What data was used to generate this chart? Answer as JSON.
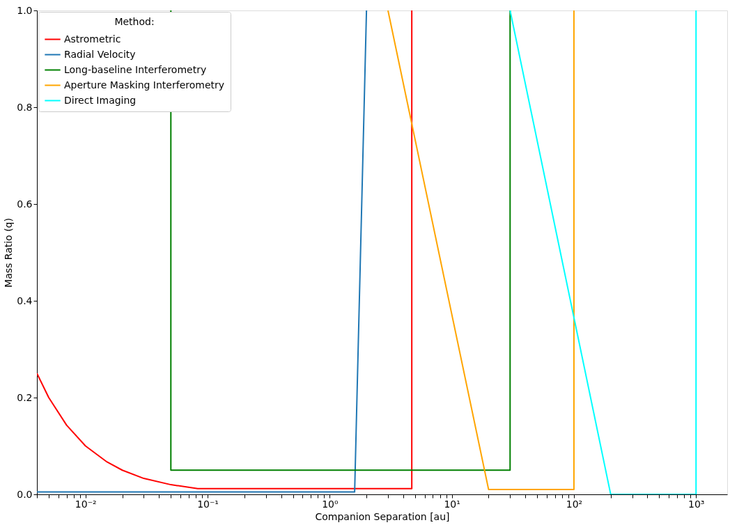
{
  "chart_data": {
    "type": "line",
    "xlabel": "Companion Separation [au]",
    "ylabel": "Mass Ratio (q)",
    "legend_title": "Method:",
    "legend": "top left",
    "grid": false,
    "log": "x",
    "marker": "none",
    "line_style": "solid",
    "xlim": [
      0.004,
      1800
    ],
    "ylim": [
      0,
      1
    ],
    "xticks": [
      {
        "value": 0.004,
        "label": null
      },
      {
        "value": 0.005,
        "label": null
      },
      {
        "value": 0.006,
        "label": null
      },
      {
        "value": 0.007,
        "label": null
      },
      {
        "value": 0.008,
        "label": null
      },
      {
        "value": 0.009,
        "label": null
      },
      {
        "value": 0.01,
        "label": "10⁻²"
      },
      {
        "value": 0.02,
        "label": null
      },
      {
        "value": 0.03,
        "label": null
      },
      {
        "value": 0.04,
        "label": null
      },
      {
        "value": 0.05,
        "label": null
      },
      {
        "value": 0.06,
        "label": null
      },
      {
        "value": 0.07,
        "label": null
      },
      {
        "value": 0.08,
        "label": null
      },
      {
        "value": 0.09,
        "label": null
      },
      {
        "value": 0.1,
        "label": "10⁻¹"
      },
      {
        "value": 0.2,
        "label": null
      },
      {
        "value": 0.3,
        "label": null
      },
      {
        "value": 0.4,
        "label": null
      },
      {
        "value": 0.5,
        "label": null
      },
      {
        "value": 0.6,
        "label": null
      },
      {
        "value": 0.7,
        "label": null
      },
      {
        "value": 0.8,
        "label": null
      },
      {
        "value": 0.9,
        "label": null
      },
      {
        "value": 1,
        "label": "10⁰"
      },
      {
        "value": 2,
        "label": null
      },
      {
        "value": 3,
        "label": null
      },
      {
        "value": 4,
        "label": null
      },
      {
        "value": 5,
        "label": null
      },
      {
        "value": 6,
        "label": null
      },
      {
        "value": 7,
        "label": null
      },
      {
        "value": 8,
        "label": null
      },
      {
        "value": 9,
        "label": null
      },
      {
        "value": 10,
        "label": "10¹"
      },
      {
        "value": 20,
        "label": null
      },
      {
        "value": 30,
        "label": null
      },
      {
        "value": 40,
        "label": null
      },
      {
        "value": 50,
        "label": null
      },
      {
        "value": 60,
        "label": null
      },
      {
        "value": 70,
        "label": null
      },
      {
        "value": 80,
        "label": null
      },
      {
        "value": 90,
        "label": null
      },
      {
        "value": 100,
        "label": "10²"
      },
      {
        "value": 200,
        "label": null
      },
      {
        "value": 300,
        "label": null
      },
      {
        "value": 400,
        "label": null
      },
      {
        "value": 500,
        "label": null
      },
      {
        "value": 600,
        "label": null
      },
      {
        "value": 700,
        "label": null
      },
      {
        "value": 800,
        "label": null
      },
      {
        "value": 900,
        "label": null
      },
      {
        "value": 1000,
        "label": "10³"
      }
    ],
    "yticks": [
      {
        "value": 0,
        "label": "0.0"
      },
      {
        "value": 0.2,
        "label": "0.2"
      },
      {
        "value": 0.4,
        "label": "0.4"
      },
      {
        "value": 0.6,
        "label": "0.6"
      },
      {
        "value": 0.8,
        "label": "0.8"
      },
      {
        "value": 1,
        "label": "1.0"
      }
    ],
    "series": [
      {
        "name": "Astrometric",
        "color": "#ff0000",
        "x": [
          0.004,
          0.005,
          0.007,
          0.01,
          0.015,
          0.02,
          0.03,
          0.05,
          0.083,
          4.7,
          4.7
        ],
        "values": [
          0.25,
          0.2,
          0.143,
          0.1,
          0.067,
          0.05,
          0.033,
          0.02,
          0.012,
          0.012,
          1.0
        ]
      },
      {
        "name": "Radial Velocity",
        "color": "#1f77b4",
        "x": [
          0.004,
          1.6,
          2.0
        ],
        "values": [
          0.005,
          0.005,
          1.0
        ]
      },
      {
        "name": "Long-baseline Interferometry",
        "color": "#008000",
        "x": [
          0.05,
          0.05,
          30,
          30
        ],
        "values": [
          1.0,
          0.05,
          0.05,
          1.0
        ]
      },
      {
        "name": "Aperture Masking Interferometry",
        "color": "#ffa500",
        "x": [
          3.0,
          20,
          100,
          100
        ],
        "values": [
          1.0,
          0.01,
          0.01,
          1.0
        ]
      },
      {
        "name": "Direct Imaging",
        "color": "#00ffff",
        "x": [
          30,
          200,
          1000,
          1000
        ],
        "values": [
          1.0,
          0.0,
          0.0,
          1.0
        ]
      }
    ]
  }
}
